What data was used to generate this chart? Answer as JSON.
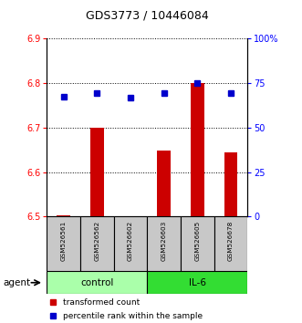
{
  "title": "GDS3773 / 10446084",
  "samples": [
    "GSM526561",
    "GSM526562",
    "GSM526602",
    "GSM526603",
    "GSM526605",
    "GSM526678"
  ],
  "groups": [
    "control",
    "control",
    "control",
    "IL-6",
    "IL-6",
    "IL-6"
  ],
  "red_values": [
    6.502,
    6.7,
    6.495,
    6.648,
    6.8,
    6.645
  ],
  "blue_values": [
    6.77,
    6.778,
    6.768,
    6.778,
    6.8,
    6.778
  ],
  "ylim_left": [
    6.5,
    6.9
  ],
  "ylim_right": [
    0,
    100
  ],
  "yticks_left": [
    6.5,
    6.6,
    6.7,
    6.8,
    6.9
  ],
  "yticks_right": [
    0,
    25,
    50,
    75,
    100
  ],
  "ytick_labels_right": [
    "0",
    "25",
    "50",
    "75",
    "100%"
  ],
  "group_colors": {
    "control": "#AAFFAA",
    "IL-6": "#33DD33"
  },
  "bar_color": "#CC0000",
  "dot_color": "#0000CC",
  "bar_bottom": 6.5,
  "sample_box_color": "#C8C8C8",
  "legend_red": "transformed count",
  "legend_blue": "percentile rank within the sample"
}
